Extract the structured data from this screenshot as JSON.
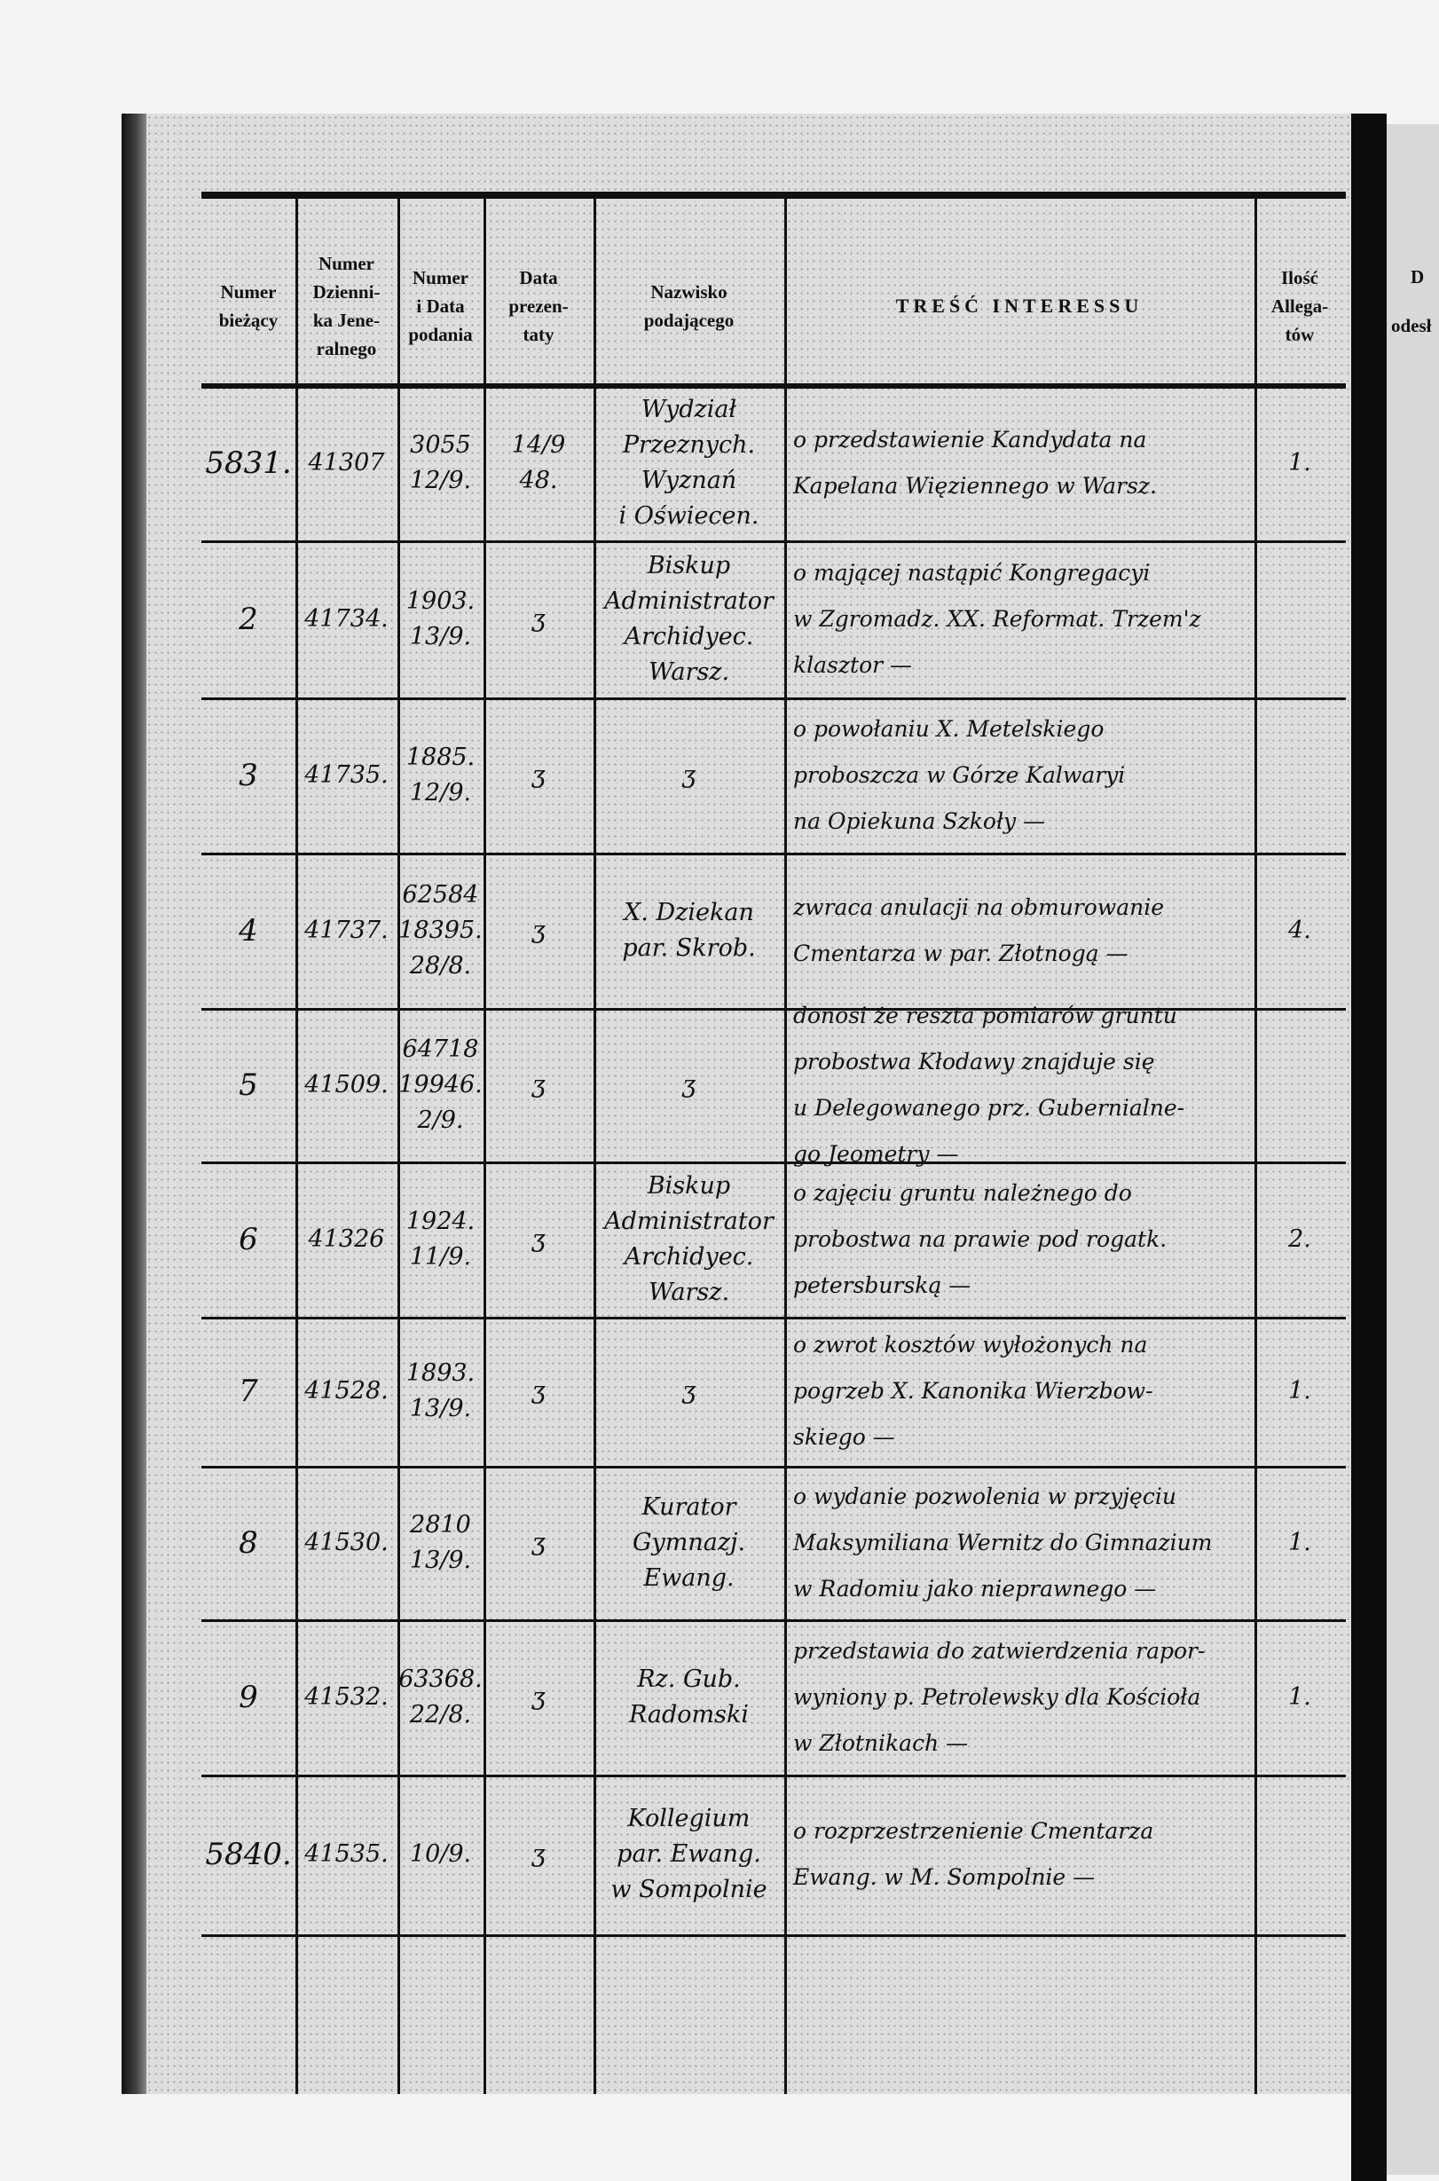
{
  "header": {
    "col_numer_biezacy": "Numer\nbieżący",
    "col_numer_dziennika": "Numer\nDzienni-\nka Jene-\nralnego",
    "col_numer_data_podania": "Numer\ni Data\npodania",
    "col_data_prezentaty": "Data\nprezen-\ntaty",
    "col_nazwisko": "Nazwisko\npodającego",
    "col_tresc": "TREŚĆ INTERESSU",
    "col_ilosc": "Ilość\nAllega-\ntów"
  },
  "next_page_header": {
    "line1": "D",
    "line2": "odesł"
  },
  "rows": [
    {
      "numer": "5831.",
      "dziennik": "41307",
      "podanie": "3055\n12/9.",
      "prezentata": "14/9\n48.",
      "nazwisko": "Wydział\nPrzeznych. Wyznań\ni Oświecen.",
      "tresc": "o przedstawienie Kandydata na\nKapelana Więziennego w Warsz.",
      "ilosc": "1."
    },
    {
      "numer": "2",
      "dziennik": "41734.",
      "podanie": "1903.\n13/9.",
      "prezentata": "ʒ",
      "nazwisko": "Biskup\nAdministrator\nArchidyec. Warsz.",
      "tresc": "o mającej nastąpić Kongregacyi\nw Zgromadz. XX. Reformat. Trzem'z\nklasztor —",
      "ilosc": ""
    },
    {
      "numer": "3",
      "dziennik": "41735.",
      "podanie": "1885.\n12/9.",
      "prezentata": "ʒ",
      "nazwisko": "ʒ",
      "tresc": "o powołaniu X. Metelskiego\nproboszcza w Górze Kalwaryi\nna Opiekuna Szkoły —",
      "ilosc": ""
    },
    {
      "numer": "4",
      "dziennik": "41737.",
      "podanie": "62584\n18395.\n28/8.",
      "prezentata": "ʒ",
      "nazwisko": "X. Dziekan\npar. Skrob.",
      "tresc": "zwraca anulacji na obmurowanie\nCmentarza w par. Złotnogą —",
      "ilosc": "4."
    },
    {
      "numer": "5",
      "dziennik": "41509.",
      "podanie": "64718\n19946.\n2/9.",
      "prezentata": "ʒ",
      "nazwisko": "ʒ",
      "tresc": "donosi że reszta pomiarów gruntu\nprobostwa Kłodawy znajduje się\nu Delegowanego prz. Gubernialne-\ngo Jeometry —",
      "ilosc": ""
    },
    {
      "numer": "6",
      "dziennik": "41326",
      "podanie": "1924.\n11/9.",
      "prezentata": "ʒ",
      "nazwisko": "Biskup\nAdministrator\nArchidyec. Warsz.",
      "tresc": "o zajęciu gruntu należnego do\nprobostwa na prawie pod rogatk.\npetersburską —",
      "ilosc": "2."
    },
    {
      "numer": "7",
      "dziennik": "41528.",
      "podanie": "1893.\n13/9.",
      "prezentata": "ʒ",
      "nazwisko": "ʒ",
      "tresc": "o zwrot kosztów wyłożonych na\npogrzeb X. Kanonika Wierzbow-\nskiego —",
      "ilosc": "1."
    },
    {
      "numer": "8",
      "dziennik": "41530.",
      "podanie": "2810\n13/9.",
      "prezentata": "ʒ",
      "nazwisko": "Kurator\nGymnazj.\nEwang.",
      "tresc": "o wydanie pozwolenia w przyjęciu\nMaksymiliana Wernitz do Gimnazium\nw Radomiu jako nieprawnego —",
      "ilosc": "1."
    },
    {
      "numer": "9",
      "dziennik": "41532.",
      "podanie": "63368.\n22/8.",
      "prezentata": "ʒ",
      "nazwisko": "Rz. Gub.\nRadomski",
      "tresc": "przedstawia do zatwierdzenia rapor-\nwyniony p. Petrolewsky dla Kościoła\nw Złotnikach —",
      "ilosc": "1."
    },
    {
      "numer": "5840.",
      "dziennik": "41535.",
      "podanie": "10/9.",
      "prezentata": "ʒ",
      "nazwisko": "Kollegium\npar. Ewang.\nw Sompolnie",
      "tresc": "o rozprzestrzenienie Cmentarza\nEwang. w M. Sompolnie —",
      "ilosc": ""
    }
  ]
}
